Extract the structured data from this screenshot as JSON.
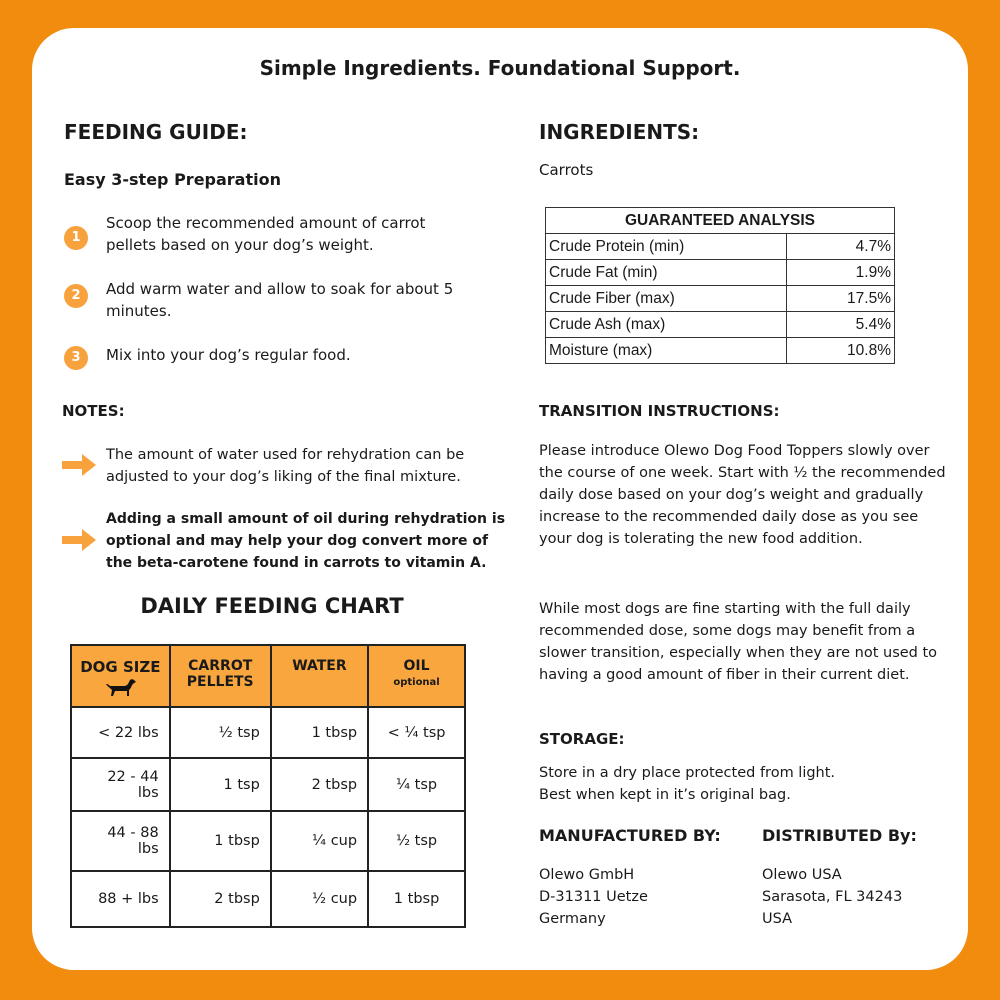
{
  "header": {
    "title": "Simple Ingredients. Foundational Support."
  },
  "feeding_guide": {
    "title": "FEEDING GUIDE:",
    "subtitle": "Easy 3-step Preparation",
    "steps": [
      {
        "number": "1",
        "text": "Scoop the recommended amount of carrot pellets based on your dog’s weight."
      },
      {
        "number": "2",
        "text": "Add warm water and allow to soak for about 5 minutes."
      },
      {
        "number": "3",
        "text": "Mix into your dog’s regular food."
      }
    ]
  },
  "notes": {
    "title": "NOTES:",
    "items": [
      "The amount of water used for rehydration can be adjusted to your dog’s liking of the final mixture.",
      "Adding a small amount of oil during rehydration is optional and may help your dog convert more of the beta-carotene found in carrots to vitamin A."
    ]
  },
  "feeding_chart": {
    "title": "DAILY FEEDING CHART",
    "columns": [
      {
        "label": "DOG SIZE"
      },
      {
        "label": "CARROT PELLETS"
      },
      {
        "label": "WATER"
      },
      {
        "label": "OIL",
        "note": "optional"
      }
    ],
    "rows": [
      [
        "< 22 lbs",
        "½ tsp",
        "1 tbsp",
        "< ¼ tsp"
      ],
      [
        "22 - 44 lbs",
        "1 tsp",
        "2 tbsp",
        "¼ tsp"
      ],
      [
        "44 - 88 lbs",
        "1 tbsp",
        "¼ cup",
        "½ tsp"
      ],
      [
        "88 + lbs",
        "2 tbsp",
        "½ cup",
        "1 tbsp"
      ]
    ]
  },
  "ingredients": {
    "title": "INGREDIENTS:",
    "text": "Carrots"
  },
  "analysis": {
    "title": "GUARANTEED ANALYSIS",
    "rows": [
      [
        "Crude Protein (min)",
        "4.7%"
      ],
      [
        "Crude Fat (min)",
        "1.9%"
      ],
      [
        "Crude Fiber (max)",
        "17.5%"
      ],
      [
        "Crude Ash (max)",
        "5.4%"
      ],
      [
        "Moisture (max)",
        "10.8%"
      ]
    ]
  },
  "transition": {
    "title": "TRANSITION INSTRUCTIONS:",
    "paragraphs": [
      "Please introduce Olewo Dog Food Toppers slowly over the course of one week. Start with ½ the recommended daily dose based on your dog’s weight and gradually increase to the recommended daily dose as you see your dog is tolerating the new food addition.",
      "While most dogs are fine starting with the full daily recommended dose, some dogs may benefit from a slower transition, especially when they are not used to having a good amount of fiber in their current diet."
    ]
  },
  "storage": {
    "title": "STORAGE:",
    "lines": [
      "Store in a dry place protected from light.",
      "Best when kept in it’s original bag."
    ]
  },
  "manufacturer": {
    "title": "MANUFACTURED BY:",
    "lines": [
      "Olewo GmbH",
      "D-31311 Uetze",
      "Germany"
    ]
  },
  "distributor": {
    "title": "DISTRIBUTED By:",
    "lines": [
      "Olewo USA",
      "Sarasota, FL 34243",
      "USA"
    ]
  }
}
